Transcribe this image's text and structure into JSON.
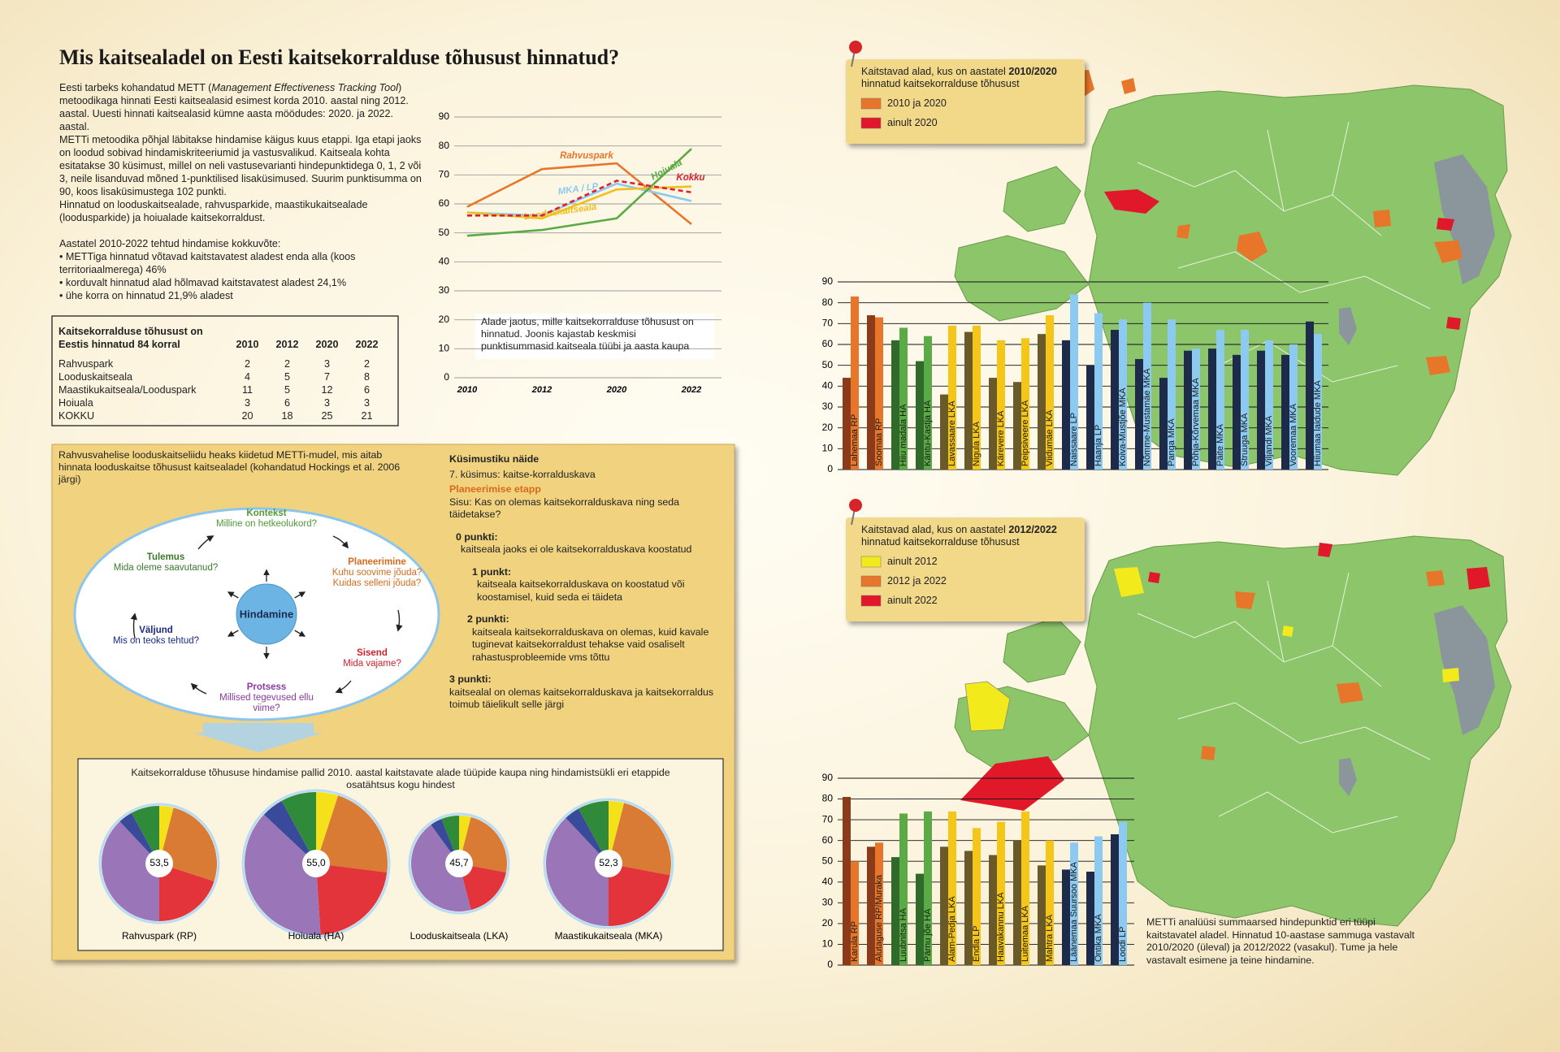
{
  "title": "Mis kaitsealadel on Eesti kaitsekorralduse tõhusust hinnatud?",
  "intro": {
    "p1_start": "Eesti tarbeks kohandatud METT (",
    "p1_italic": "Management Effectiveness Tracking Tool",
    "p1_end": ") metoodikaga hinnati Eesti kaitsealasid esimest korda 2010. aastal ning 2012. aastal. Uuesti hinnati kaitsealasid kümne aasta möödudes: 2020. ja 2022. aastal.",
    "p2": "METTi metoodika põhjal läbitakse hindamise käigus kuus etappi. Iga etapi jaoks on loodud sobivad hindamiskriteeriumid ja vastusvalikud. Kaitseala kohta esitatakse 30 küsimust, millel on neli vastusevarianti hindepunktidega 0, 1, 2 või 3, neile lisanduvad mõned 1-punktilised lisaküsimused. Suurim punktisumma on 90, koos lisaküsimustega 102 punkti.",
    "p3": "Hinnatud on looduskaitsealade, rahvusparkide, maastikukaitsealade (loodusparkide) ja hoiualade kaitsekorraldust.",
    "summary": "Aastatel 2010-2022 tehtud hindamise kokkuvõte:",
    "bullets": [
      "• METTiga hinnatud võtavad kaitstavatest aladest enda alla (koos territoriaalmerega) 46%",
      "• korduvalt hinnatud alad hõlmavad kaitstavatest aladest 24,1%",
      "• ühe korra on hinnatud 21,9% aladest"
    ]
  },
  "table": {
    "title": "Kaitsekorralduse tõhusust on Eestis hinnatud 84 korral",
    "columns": [
      "2010",
      "2012",
      "2020",
      "2022"
    ],
    "rows": [
      {
        "label": "Rahvuspark",
        "values": [
          2,
          2,
          3,
          2
        ]
      },
      {
        "label": "Looduskaitseala",
        "values": [
          4,
          5,
          7,
          8
        ]
      },
      {
        "label": "Maastikukaitseala/Looduspark",
        "values": [
          11,
          5,
          12,
          6
        ]
      },
      {
        "label": "Hoiuala",
        "values": [
          3,
          6,
          3,
          3
        ]
      },
      {
        "label": "KOKKU",
        "values": [
          20,
          18,
          25,
          21
        ]
      }
    ]
  },
  "cycle": {
    "heading": "Rahvusvahelise looduskaitseliidu heaks kiidetud METTi-mudel, mis aitab hinnata looduskaitse tõhusust kaitsealadel (kohandatud Hockings et al. 2006 järgi)",
    "center": "Hindamine",
    "stages": [
      {
        "name": "Kontekst",
        "question": "Milline on hetkeolukord?"
      },
      {
        "name": "Planeerimine",
        "question": "Kuhu soovime jõuda? Kuidas selleni jõuda?"
      },
      {
        "name": "Sisend",
        "question": "Mida vajame?"
      },
      {
        "name": "Protsess",
        "question": "Millised tegevused ellu viime?"
      },
      {
        "name": "Väljund",
        "question": "Mis on teoks tehtud?"
      },
      {
        "name": "Tulemus",
        "question": "Mida oleme saavutanud?"
      }
    ]
  },
  "questionnaire": {
    "heading": "Küsimustiku näide",
    "question": "7. küsimus: kaitse-korralduskava",
    "stage": "Planeerimise etapp",
    "content": "Sisu: Kas on olemas kaitsekorralduskava ning seda täidetakse?",
    "answers": [
      {
        "points": "0 punkti:",
        "text": "kaitseala jaoks ei ole kaitsekorralduskava koostatud"
      },
      {
        "points": "1 punkt:",
        "text": "kaitseala kaitsekorralduskava on koostatud või koostamisel, kuid seda ei täideta"
      },
      {
        "points": "2 punkti:",
        "text": "kaitseala kaitsekorralduskava on olemas, kuid kavale tuginevat kaitsekorraldust tehakse vaid osaliselt rahastusprobleemide vms tõttu"
      },
      {
        "points": "3 punkti:",
        "text": "kaitsealal on olemas kaitsekorralduskava ja kaitsekorraldus toimub täielikult selle järgi"
      }
    ]
  },
  "pie_box_title": "Kaitsekorralduse tõhususe hindamise pallid 2010. aastal kaitstavate alade tüüpide kaupa ning hindamistsükli eri etappide osatähtsus kogu hindest",
  "maps": [
    {
      "legend_title_start": "Kaitstavad alad, kus on aastatel ",
      "legend_title_years": "2010/2020",
      "legend_title_end": " hinnatud kaitsekorralduse tõhusust",
      "legend": [
        {
          "label": "2010 ja 2020",
          "color": "#e8762a"
        },
        {
          "label": "ainult 2020",
          "color": "#e0182a"
        }
      ]
    },
    {
      "legend_title_start": "Kaitstavad alad, kus on aastatel ",
      "legend_title_years": "2012/2022",
      "legend_title_end": " hinnatud kaitsekorralduse tõhusust",
      "legend": [
        {
          "label": "ainult 2012",
          "color": "#f2ea1a"
        },
        {
          "label": "2012 ja 2022",
          "color": "#e8762a"
        },
        {
          "label": "ainult 2022",
          "color": "#e0182a"
        }
      ]
    }
  ],
  "caption": "METTi analüüsi summaarsed hindepunktid eri tüüpi kaitstavatel aladel. Hinnatud 10-aastase sammuga vastavalt 2010/2020 (üleval) ja 2012/2022 (vasakul). Tume ja hele vastavalt esimene ja teine hindamine.",
  "chart_data": [
    {
      "type": "line",
      "categories": [
        "2010",
        "2012",
        "2020",
        "2022"
      ],
      "ylim": [
        0,
        90
      ],
      "yticks": [
        0,
        10,
        20,
        30,
        40,
        50,
        60,
        70,
        80,
        90
      ],
      "grid": true,
      "annotation": "Alade jaotus, mille kaitsekorralduse tõhusust on hinnatud. Joonis kajastab keskmisi punktisummasid kaitseala tüübi ja aasta kaupa",
      "series": [
        {
          "name": "Rahvuspark",
          "color": "#e8762a",
          "values": [
            59,
            72,
            74,
            53
          ]
        },
        {
          "name": "MKA / LP",
          "color": "#8ccaf2",
          "values": [
            57,
            56,
            67,
            61
          ]
        },
        {
          "name": "Looduskaitseala",
          "color": "#f2be1a",
          "values": [
            57,
            55,
            65,
            66
          ]
        },
        {
          "name": "Hoiuala",
          "color": "#5aaa45",
          "values": [
            49,
            51,
            55,
            79
          ]
        },
        {
          "name": "Kokku",
          "color": "#e02030",
          "dash": true,
          "values": [
            56,
            56,
            68,
            64
          ]
        }
      ]
    },
    {
      "type": "bar",
      "ylim": [
        0,
        90
      ],
      "yticks": [
        0,
        10,
        20,
        30,
        40,
        50,
        60,
        70,
        80,
        90
      ],
      "grid": true,
      "categories": [
        "Lahemaa RP",
        "Soomaa RP",
        "Hiiu madala HA",
        "Käntu-Kastja HA",
        "Lavassaare LKA",
        "Nigula LKA",
        "Kärevere LKA",
        "Peipsiveere LKA",
        "Viidumäe LKA",
        "Naissaare LP",
        "Haanja LP",
        "Koiva-Mustjõe MKA",
        "Nõmme-Mustamäe MKA",
        "Panga MKA",
        "Põhja-Kõrvemaa MKA",
        "Päite MKA",
        "Struuga MKA",
        "Viljandi MKA",
        "Vooremaa MKA",
        "Hiiumaa laidude MKA"
      ],
      "series": [
        {
          "colors": [
            "#8b3a1a",
            "#8b3a1a",
            "#2f6a2a",
            "#2f6a2a",
            "#6a5a2a",
            "#6a5a2a",
            "#6a5a2a",
            "#6a5a2a",
            "#6a5a2a",
            "#1e2a4a",
            "#1e2a4a",
            "#1e2a4a",
            "#1e2a4a",
            "#1e2a4a",
            "#1e2a4a",
            "#1e2a4a",
            "#1e2a4a",
            "#1e2a4a",
            "#1e2a4a",
            "#1e2a4a"
          ],
          "values": [
            44,
            74,
            62,
            52,
            36,
            66,
            44,
            42,
            65,
            62,
            50,
            67,
            53,
            44,
            57,
            58,
            55,
            57,
            55,
            71
          ]
        },
        {
          "colors": [
            "#e8762a",
            "#e8762a",
            "#5aaa45",
            "#5aaa45",
            "#f5c518",
            "#f5c518",
            "#f5c518",
            "#f5c518",
            "#f5c518",
            "#8ccaf2",
            "#8ccaf2",
            "#8ccaf2",
            "#8ccaf2",
            "#8ccaf2",
            "#8ccaf2",
            "#8ccaf2",
            "#8ccaf2",
            "#8ccaf2",
            "#8ccaf2",
            "#8ccaf2"
          ],
          "values": [
            83,
            73,
            68,
            64,
            69,
            69,
            62,
            63,
            74,
            84,
            75,
            72,
            80,
            72,
            58,
            67,
            67,
            62,
            60,
            65
          ]
        }
      ]
    },
    {
      "type": "bar",
      "ylim": [
        0,
        90
      ],
      "yticks": [
        0,
        10,
        20,
        30,
        40,
        50,
        60,
        70,
        80,
        90
      ],
      "grid": true,
      "categories": [
        "Karula RP",
        "Alutaguse RP/Muraka",
        "Luubnitsa HA",
        "Pärnu jõe HA",
        "Alam-Pedja LKA",
        "Endla LP",
        "Haavakannu LKA",
        "Luitemaa LKA",
        "Mahtra LKA",
        "Läänemaa Suursoo MKA",
        "Ontika MKA",
        "Loodi LP"
      ],
      "series": [
        {
          "colors": [
            "#8b3a1a",
            "#8b3a1a",
            "#2f6a2a",
            "#2f6a2a",
            "#6a5a2a",
            "#6a5a2a",
            "#6a5a2a",
            "#6a5a2a",
            "#6a5a2a",
            "#1e2a4a",
            "#1e2a4a",
            "#1e2a4a"
          ],
          "values": [
            81,
            57,
            52,
            44,
            57,
            55,
            53,
            60,
            48,
            46,
            45,
            63
          ]
        },
        {
          "colors": [
            "#e8762a",
            "#e8762a",
            "#5aaa45",
            "#5aaa45",
            "#f5c518",
            "#f5c518",
            "#f5c518",
            "#f5c518",
            "#f5c518",
            "#8ccaf2",
            "#8ccaf2",
            "#8ccaf2"
          ],
          "values": [
            50,
            59,
            73,
            74,
            74,
            66,
            69,
            74,
            60,
            59,
            62,
            69
          ]
        }
      ]
    },
    {
      "type": "pie",
      "title": "Rahvuspark (RP)",
      "center_label": "53,5",
      "colors": [
        "#f5e11a",
        "#d97a35",
        "#e2343a",
        "#9a76b8",
        "#3a4a9a",
        "#2f8a3a"
      ],
      "values": [
        4,
        26,
        20,
        38,
        4,
        8
      ]
    },
    {
      "type": "pie",
      "title": "Hoiuala (HA)",
      "center_label": "55,0",
      "colors": [
        "#f5e11a",
        "#d97a35",
        "#e2343a",
        "#9a76b8",
        "#3a4a9a",
        "#2f8a3a"
      ],
      "values": [
        5,
        22,
        22,
        38,
        5,
        8
      ]
    },
    {
      "type": "pie",
      "title": "Looduskaitseala (LKA)",
      "center_label": "45,7",
      "colors": [
        "#f5e11a",
        "#d97a35",
        "#e2343a",
        "#9a76b8",
        "#3a4a9a",
        "#2f8a3a"
      ],
      "values": [
        4,
        24,
        18,
        44,
        4,
        6
      ]
    },
    {
      "type": "pie",
      "title": "Maastikukaitseala (MKA)",
      "center_label": "52,3",
      "colors": [
        "#f5e11a",
        "#d97a35",
        "#e2343a",
        "#9a76b8",
        "#3a4a9a",
        "#2f8a3a"
      ],
      "values": [
        4,
        24,
        22,
        38,
        4,
        8
      ]
    }
  ]
}
